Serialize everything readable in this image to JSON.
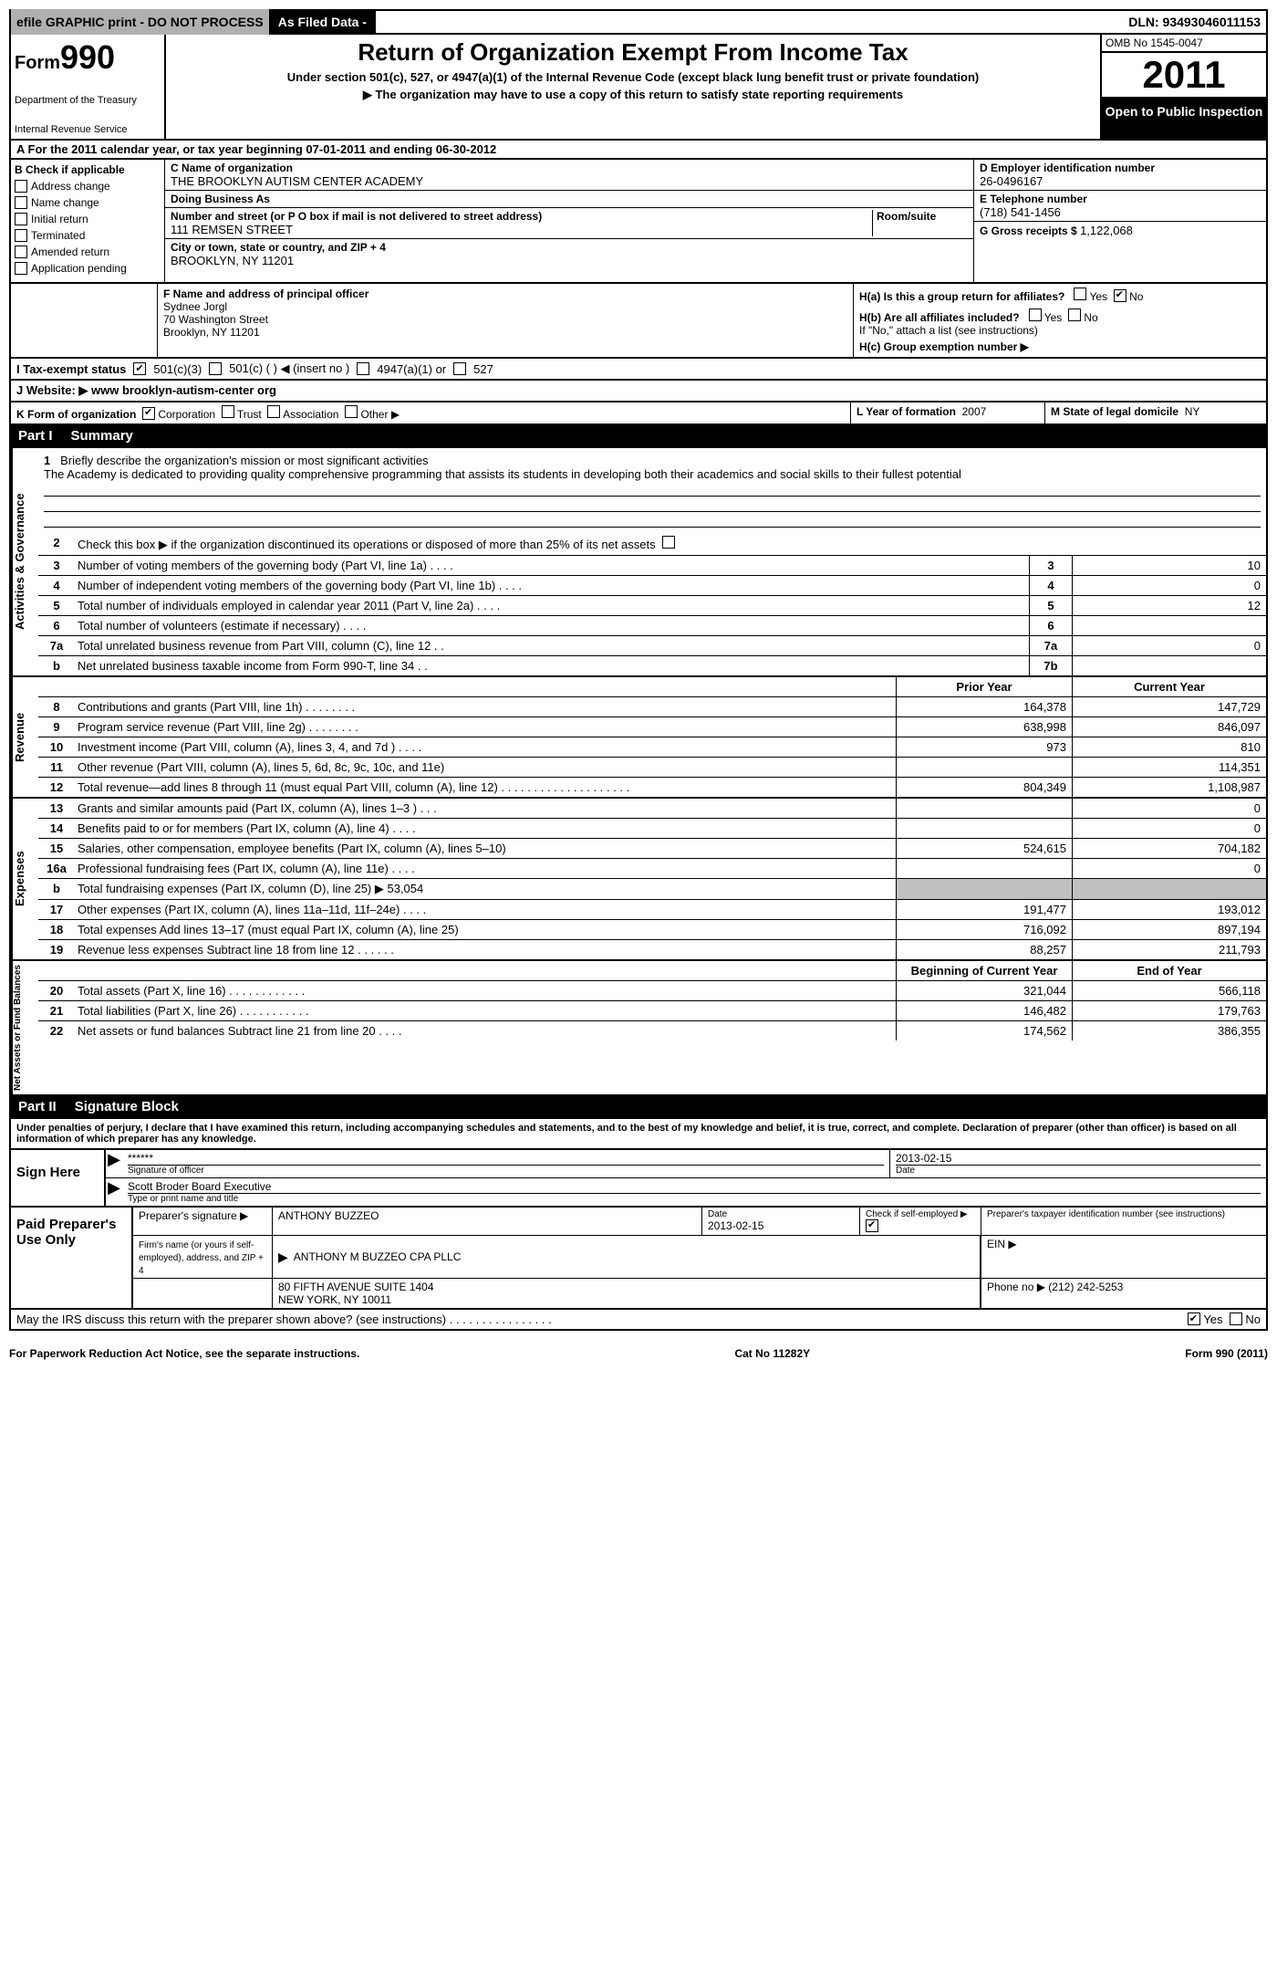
{
  "header": {
    "efile": "efile GRAPHIC print - DO NOT PROCESS",
    "asfiled": "As Filed Data -",
    "dln_label": "DLN:",
    "dln": "93493046011153",
    "form": "Form",
    "form_number": "990",
    "title": "Return of Organization Exempt From Income Tax",
    "subtitle1": "Under section 501(c), 527, or 4947(a)(1) of the Internal Revenue Code (except black lung benefit trust or private foundation)",
    "subtitle2": "▶ The organization may have to use a copy of this return to satisfy state reporting requirements",
    "dept1": "Department of the Treasury",
    "dept2": "Internal Revenue Service",
    "omb": "OMB No 1545-0047",
    "year": "2011",
    "open_public": "Open to Public Inspection"
  },
  "line_a": "A  For the 2011 calendar year, or tax year beginning 07-01-2011     and ending 06-30-2012",
  "section_b": {
    "label": "B Check if applicable",
    "items": [
      "Address change",
      "Name change",
      "Initial return",
      "Terminated",
      "Amended return",
      "Application pending"
    ]
  },
  "section_c": {
    "name_label": "C Name of organization",
    "name": "THE BROOKLYN AUTISM CENTER ACADEMY",
    "dba_label": "Doing Business As",
    "dba": "",
    "street_label": "Number and street (or P O  box if mail is not delivered to street address)",
    "room_label": "Room/suite",
    "street": "111 REMSEN STREET",
    "city_label": "City or town, state or country, and ZIP + 4",
    "city": "BROOKLYN, NY  11201"
  },
  "section_d": {
    "ein_label": "D Employer identification number",
    "ein": "26-0496167",
    "phone_label": "E Telephone number",
    "phone": "(718) 541-1456",
    "gross_label": "G Gross receipts $",
    "gross": "1,122,068"
  },
  "section_f": {
    "label": "F  Name and address of principal officer",
    "name": "Sydnee Jorgl",
    "street": "70 Washington Street",
    "city": "Brooklyn, NY  11201"
  },
  "section_h": {
    "ha": "H(a)  Is this a group return for affiliates?",
    "hb": "H(b)  Are all affiliates included?",
    "hb_note": "If \"No,\" attach a list  (see instructions)",
    "hc": "H(c)   Group exemption number ▶"
  },
  "line_i": {
    "label": "I  Tax-exempt status",
    "opts": [
      "501(c)(3)",
      "501(c) (   ) ◀ (insert no )",
      "4947(a)(1) or",
      "527"
    ]
  },
  "line_j": "J  Website: ▶  www brooklyn-autism-center org",
  "line_k": {
    "k1": "K Form of organization",
    "opts": [
      "Corporation",
      "Trust",
      "Association",
      "Other ▶"
    ],
    "k2_label": "L Year of formation",
    "k2": "2007",
    "k3_label": "M State of legal domicile",
    "k3": "NY"
  },
  "part1": {
    "label": "Part I",
    "title": "Summary"
  },
  "activities": {
    "side": "Activities & Governance",
    "line1_label": "1",
    "line1_text": "Briefly describe the organization's mission or most significant activities",
    "line1_mission": "The Academy is dedicated to providing quality comprehensive programming that assists its students in developing both their academics and social skills to their fullest potential",
    "line2": "Check this box ▶     if the organization discontinued its operations or disposed of more than 25% of its net assets",
    "rows": [
      {
        "n": "3",
        "t": "Number of voting members of the governing body (Part VI, line 1a)  .  .  .  .",
        "a": "3",
        "b": "10"
      },
      {
        "n": "4",
        "t": "Number of independent voting members of the governing body (Part VI, line 1b)  .  .  .  .",
        "a": "4",
        "b": "0"
      },
      {
        "n": "5",
        "t": "Total number of individuals employed in calendar year 2011 (Part V, line 2a)  .  .  .  .",
        "a": "5",
        "b": "12"
      },
      {
        "n": "6",
        "t": "Total number of volunteers (estimate if necessary)  .  .  .  .",
        "a": "6",
        "b": ""
      },
      {
        "n": "7a",
        "t": "Total unrelated business revenue from Part VIII, column (C), line 12  .  .",
        "a": "7a",
        "b": "0"
      },
      {
        "n": "b",
        "t": "Net unrelated business taxable income from Form 990-T, line 34  .  .",
        "a": "7b",
        "b": ""
      }
    ]
  },
  "revenue": {
    "side": "Revenue",
    "header_prior": "Prior Year",
    "header_curr": "Current Year",
    "rows": [
      {
        "n": "8",
        "t": "Contributions and grants (Part VIII, line 1h)  .  .  .  .  .  .  .  .",
        "p": "164,378",
        "c": "147,729"
      },
      {
        "n": "9",
        "t": "Program service revenue (Part VIII, line 2g)  .  .  .  .  .  .  .  .",
        "p": "638,998",
        "c": "846,097"
      },
      {
        "n": "10",
        "t": "Investment income (Part VIII, column (A), lines 3, 4, and 7d )  .  .  .  .",
        "p": "973",
        "c": "810"
      },
      {
        "n": "11",
        "t": "Other revenue (Part VIII, column (A), lines 5, 6d, 8c, 9c, 10c, and 11e)",
        "p": "",
        "c": "114,351"
      },
      {
        "n": "12",
        "t": "Total revenue—add lines 8 through 11 (must equal Part VIII, column (A), line 12) .  .  .  .  .  .  .  .  .  .  .  .  .  .  .  .  .  .  .  .",
        "p": "804,349",
        "c": "1,108,987"
      }
    ]
  },
  "expenses": {
    "side": "Expenses",
    "rows": [
      {
        "n": "13",
        "t": "Grants and similar amounts paid (Part IX, column (A), lines 1–3 )  .  .  .",
        "p": "",
        "c": "0"
      },
      {
        "n": "14",
        "t": "Benefits paid to or for members (Part IX, column (A), line 4)  .  .  .  .",
        "p": "",
        "c": "0"
      },
      {
        "n": "15",
        "t": "Salaries, other compensation, employee benefits (Part IX, column (A), lines 5–10)",
        "p": "524,615",
        "c": "704,182"
      },
      {
        "n": "16a",
        "t": "Professional fundraising fees (Part IX, column (A), line 11e)  .  .  .  .",
        "p": "",
        "c": "0"
      },
      {
        "n": "b",
        "t": "Total fundraising expenses (Part IX, column (D), line 25) ▶ 53,054",
        "p": "",
        "c": "",
        "shaded": true
      },
      {
        "n": "17",
        "t": "Other expenses (Part IX, column (A), lines 11a–11d, 11f–24e)  .  .  .  .",
        "p": "191,477",
        "c": "193,012"
      },
      {
        "n": "18",
        "t": "Total expenses  Add lines 13–17 (must equal Part IX, column (A), line 25)",
        "p": "716,092",
        "c": "897,194"
      },
      {
        "n": "19",
        "t": "Revenue less expenses  Subtract line 18 from line 12  .  .  .  .  .  .",
        "p": "88,257",
        "c": "211,793"
      }
    ]
  },
  "netassets": {
    "side": "Net Assets or Fund Balances",
    "header_prior": "Beginning of Current Year",
    "header_curr": "End of Year",
    "rows": [
      {
        "n": "20",
        "t": "Total assets (Part X, line 16)  .  .  .  .  .  .  .  .  .  .  .  .",
        "p": "321,044",
        "c": "566,118"
      },
      {
        "n": "21",
        "t": "Total liabilities (Part X, line 26)  .  .  .  .  .  .  .  .  .  .  .",
        "p": "146,482",
        "c": "179,763"
      },
      {
        "n": "22",
        "t": "Net assets or fund balances  Subtract line 21 from line 20  .  .  .  .",
        "p": "174,562",
        "c": "386,355"
      }
    ]
  },
  "part2": {
    "label": "Part II",
    "title": "Signature Block"
  },
  "perjury": "Under penalties of perjury, I declare that I have examined this return, including accompanying schedules and statements, and to the best of my knowledge and belief, it is true, correct, and complete. Declaration of preparer (other than officer) is based on all information of which preparer has any knowledge.",
  "sign": {
    "left": "Sign Here",
    "stars": "******",
    "sig_label": "Signature of officer",
    "date": "2013-02-15",
    "date_label": "Date",
    "name": "Scott Broder Board Executive",
    "name_label": "Type or print name and title"
  },
  "prep": {
    "left": "Paid Preparer's Use Only",
    "sig_label": "Preparer's signature ▶",
    "sig": "ANTHONY BUZZEO",
    "sig_date_label": "Date",
    "sig_date": "2013-02-15",
    "check_label": "Check if self-employed ▶",
    "ptin_label": "Preparer's taxpayer identification number (see instructions)",
    "firm_label": "Firm's name (or yours if self-employed), address, and ZIP + 4",
    "firm": "ANTHONY M BUZZEO CPA PLLC",
    "addr1": "80 FIFTH AVENUE SUITE 1404",
    "addr2": "NEW YORK, NY  10011",
    "ein_label": "EIN ▶",
    "phone_label": "Phone no  ▶",
    "phone": "(212) 242-5253"
  },
  "discuss": "May the IRS discuss this return with the preparer shown above? (see instructions)  .  .  .  .  .  .  .  .  .  .  .  .  .  .  .  .",
  "footer": {
    "left": "For Paperwork Reduction Act Notice, see the separate instructions.",
    "mid": "Cat No  11282Y",
    "right": "Form 990 (2011)"
  }
}
